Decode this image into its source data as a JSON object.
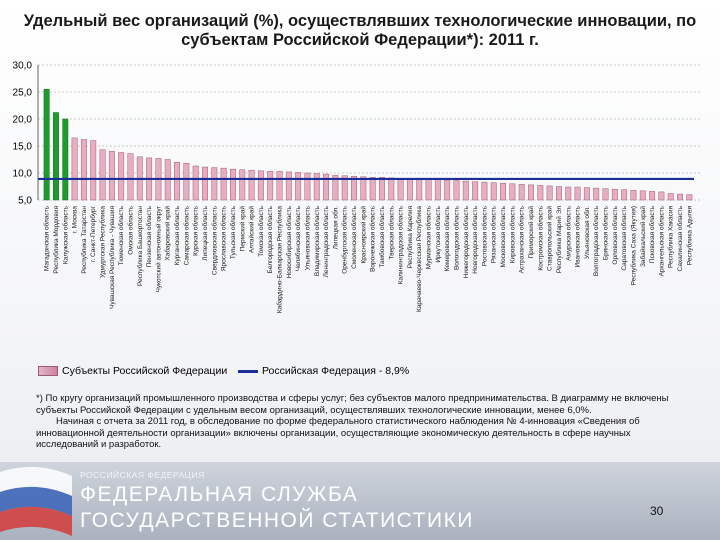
{
  "title": "Удельный вес организаций (%), осуществлявших технологические инновации, по субъектам Российской Федерации*): 2011 г.",
  "chart_data": {
    "type": "bar",
    "ylim": [
      5,
      30
    ],
    "y_ticks": [
      "30,0",
      "25,0",
      "20,0",
      "15,0",
      "10,0",
      "5,0"
    ],
    "y_tick_values": [
      30,
      25,
      20,
      15,
      10,
      5
    ],
    "reference_line": {
      "name": "Российская Федерация - 8,9%",
      "value": 8.9
    },
    "series": [
      {
        "name": "Субъекты Российской Федерации",
        "values": [
          25.5,
          21.2,
          20.0,
          16.5,
          16.2,
          16.0,
          14.3,
          14.0,
          13.8,
          13.6,
          13.0,
          12.8,
          12.7,
          12.5,
          12.0,
          11.8,
          11.3,
          11.1,
          11.0,
          10.9,
          10.7,
          10.6,
          10.5,
          10.4,
          10.3,
          10.3,
          10.2,
          10.1,
          10.0,
          9.9,
          9.8,
          9.6,
          9.5,
          9.4,
          9.3,
          9.2,
          9.2,
          9.1,
          9.0,
          9.0,
          8.9,
          8.9,
          8.8,
          8.7,
          8.6,
          8.5,
          8.4,
          8.3,
          8.2,
          8.1,
          8.0,
          7.9,
          7.8,
          7.7,
          7.6,
          7.5,
          7.4,
          7.4,
          7.3,
          7.2,
          7.1,
          7.0,
          6.9,
          6.8,
          6.7,
          6.6,
          6.5,
          6.2,
          6.1,
          6.0
        ]
      }
    ],
    "categories": [
      "Магаданская область",
      "Республика Мордовия",
      "Калужская область",
      "г. Москва",
      "Республика Татарстан",
      "г. Санкт-Петербург",
      "Удмуртская Республика",
      "Чувашская Республика - Чувашия",
      "Тюменская область",
      "Омская область",
      "Республика Башкортостан",
      "Пензенская область",
      "Чукотский автономный округ",
      "Хабаровский край",
      "Курганская область",
      "Самарская область",
      "Курская область",
      "Липецкая область",
      "Свердловская область",
      "Ярославская область",
      "Тульская область",
      "Пермский край",
      "Алтайский край",
      "Томская область",
      "Белгородская область",
      "Кабардино-Балкарская Республика",
      "Новосибирская область",
      "Челябинская область",
      "Ульяновская область",
      "Владимирская область",
      "Ленинградская область",
      "Липецкая обл.",
      "Оренбургская область",
      "Смоленская область",
      "Красноярский край",
      "Воронежская область",
      "Тамбовская область",
      "Тверская область",
      "Калининградская область",
      "Республика Карелия",
      "Карачаево-Черкесская Республика",
      "Мурманская область",
      "Иркутская область",
      "Кемеровская область",
      "Вологодская область",
      "Нижегородская область",
      "Новгородская область",
      "Ростовская область",
      "Рязанская область",
      "Московская область",
      "Кировская область",
      "Астраханская область",
      "Приморский край",
      "Костромская область",
      "Ставропольский край",
      "Республика Марий Эл",
      "Амурская область",
      "Ивановская область",
      "Ульяновская обл.",
      "Волгоградская область",
      "Брянская область",
      "Орловская область",
      "Саратовская область",
      "Республика Саха (Якутия)",
      "Забайкальский край",
      "Псковская область",
      "Архангельская область",
      "Республика Хакасия",
      "Сахалинская область",
      "Республика Адыгея"
    ]
  },
  "legend": {
    "bars_label": "Субъекты Российской Федерации",
    "line_label": "Российская Федерация - 8,9%"
  },
  "footnote": {
    "line1": "*) По кругу организаций промышленного производства и сферы услуг; без субъектов малого предпринимательства. В диаграмму не включены субъекты Российской Федерации с удельным весом организаций, осуществлявших технологические инновации, менее 6,0%.",
    "line2": "Начиная с отчета за 2011 год, в обследование по форме федерального статистического наблюдения № 4-инновация «Сведения об инновационной деятельности организации» включены организации, осуществляющие экономическую деятельность в сфере научных исследований и разработок."
  },
  "footer": {
    "small": "РОССИЙСКАЯ ФЕДЕРАЦИЯ",
    "org_line1": "ФЕДЕРАЛЬНАЯ СЛУЖБА",
    "org_line2": "ГОСУДАРСТВЕННОЙ СТАТИСТИКИ",
    "page_number": "30"
  },
  "colors": {
    "bar_fill": "#e7adc0",
    "bar_edge": "#a25a74",
    "highlight_bar": "#1f9a2e",
    "reference_line": "#1a2f9a"
  }
}
